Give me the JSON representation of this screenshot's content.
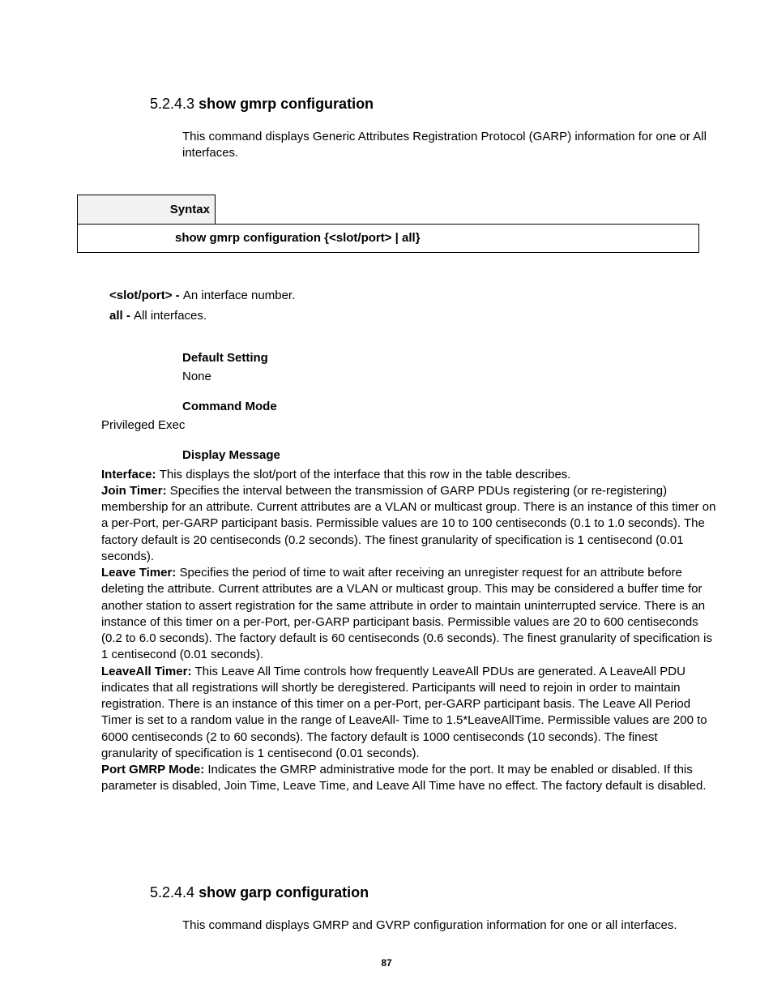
{
  "section1": {
    "number": "5.2.4.3",
    "title": "show gmrp configuration",
    "intro": "This command displays Generic Attributes Registration Protocol (GARP) information for one or All interfaces.",
    "syntax_label": "Syntax",
    "syntax_command": "show gmrp configuration {<slot/port> | all}",
    "param1_bold": "<slot/port> - ",
    "param1_rest": "An interface number.",
    "param2_bold": "all - ",
    "param2_rest": "All interfaces.",
    "default_setting_label": "Default Setting",
    "default_setting_value": "None",
    "command_mode_label": "Command Mode",
    "command_mode_value": "Privileged Exec",
    "display_message_label": "Display Message",
    "dm_interface_bold": "Interface: ",
    "dm_interface_rest": "This displays the slot/port of the interface that this row in the table describes.",
    "dm_join_bold": "Join Timer: ",
    "dm_join_rest": "Specifies the interval between the transmission of GARP PDUs registering (or re-registering) membership for an attribute. Current attributes are a VLAN or multicast group. There is an instance of this timer on a per-Port, per-GARP participant basis. Permissible values are 10 to 100 centiseconds (0.1 to 1.0 seconds). The factory default is 20 centiseconds (0.2 seconds). The finest granularity of specification is 1 centisecond (0.01 seconds).",
    "dm_leave_bold": "Leave Timer: ",
    "dm_leave_rest": "Specifies the period of time to wait after receiving an unregister request for an attribute before deleting the attribute. Current attributes are a VLAN or multicast group. This may be considered a buffer time for another station to assert registration for the same attribute in order to maintain uninterrupted service. There is an instance of this timer on a per-Port, per-GARP participant basis. Permissible values are 20 to 600 centiseconds (0.2 to 6.0 seconds). The factory default is 60 centiseconds (0.6 seconds). The finest granularity of specification is 1 centisecond (0.01 seconds).",
    "dm_leaveall_bold": "LeaveAll Timer: ",
    "dm_leaveall_rest": "This Leave All Time controls how frequently LeaveAll PDUs are generated. A LeaveAll PDU indicates that all registrations will shortly be deregistered. Participants will need to rejoin in order to maintain registration. There is an instance of this timer on a per-Port, per-GARP participant basis. The Leave All Period Timer is set to a random value in the range of LeaveAll- Time to 1.5*LeaveAllTime. Permissible values are 200 to 6000 centiseconds (2 to 60 seconds). The factory default is 1000 centiseconds (10 seconds). The finest granularity of specification is 1 centisecond (0.01 seconds).",
    "dm_port_bold": "Port GMRP Mode: ",
    "dm_port_rest": "Indicates the GMRP administrative mode for the port. It may be enabled or disabled. If this parameter is disabled, Join Time, Leave Time, and Leave All Time have no effect. The factory default is disabled."
  },
  "section2": {
    "number": "5.2.4.4",
    "title": "show garp configuration",
    "intro": "This command displays GMRP and GVRP configuration information for one or all interfaces."
  },
  "page_number": "87"
}
